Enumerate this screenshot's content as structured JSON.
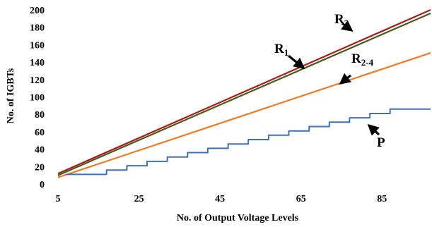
{
  "chart_data": {
    "type": "line",
    "title": "",
    "xlabel": "No. of Output Voltage Levels",
    "ylabel": "No. of  IGBTs",
    "xlim": [
      5,
      97
    ],
    "ylim": [
      0,
      200
    ],
    "x_ticks": [
      5,
      25,
      45,
      65,
      85
    ],
    "y_ticks": [
      0,
      20,
      40,
      60,
      80,
      100,
      120,
      140,
      160,
      180,
      200
    ],
    "grid": false,
    "legend": "none",
    "series": [
      {
        "key": "R3",
        "color": "#a81c1c",
        "x": [
          5,
          97
        ],
        "y": [
          12,
          200
        ]
      },
      {
        "key": "R1",
        "color": "#4a5a1e",
        "x": [
          5,
          97
        ],
        "y": [
          10,
          196
        ]
      },
      {
        "key": "R2-4",
        "color": "#ee7a26",
        "x": [
          5,
          97
        ],
        "y": [
          7.5,
          150.5
        ]
      },
      {
        "key": "P",
        "color": "#3f6fb6",
        "step": true,
        "x": [
          7,
          12,
          17,
          22,
          27,
          32,
          37,
          42,
          47,
          52,
          57,
          62,
          67,
          72,
          77,
          82,
          87,
          92,
          97
        ],
        "y": [
          11,
          11,
          16,
          21,
          26,
          31,
          36,
          41,
          46,
          51,
          56,
          61,
          66,
          71,
          76,
          81,
          86,
          86,
          86
        ]
      }
    ],
    "annotations": [
      {
        "target": "R3",
        "main": "R",
        "sub": "3"
      },
      {
        "target": "R1",
        "main": "R",
        "sub": "1"
      },
      {
        "target": "R2-4",
        "main": "R",
        "sub": "2-4"
      },
      {
        "target": "P",
        "main": "P",
        "sub": ""
      }
    ]
  }
}
